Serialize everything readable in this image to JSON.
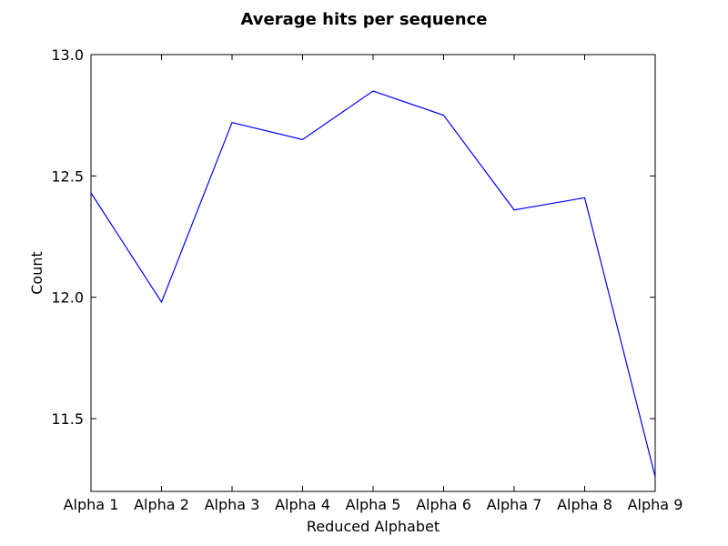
{
  "chart_data": {
    "type": "line",
    "title": "Average hits per sequence",
    "xlabel": "Reduced Alphabet",
    "ylabel": "Count",
    "categories": [
      "Alpha 1",
      "Alpha 2",
      "Alpha 3",
      "Alpha 4",
      "Alpha 5",
      "Alpha 6",
      "Alpha 7",
      "Alpha 8",
      "Alpha 9"
    ],
    "series": [
      {
        "values": [
          12.43,
          11.98,
          12.72,
          12.65,
          12.85,
          12.75,
          12.36,
          12.41,
          11.26
        ],
        "color": "#0000ff"
      }
    ],
    "ylim": [
      11.2,
      13.0
    ],
    "yticks": [
      11.5,
      12.0,
      12.5,
      13.0
    ],
    "ytick_labels": [
      "11.5",
      "12.0",
      "12.5",
      "13.0"
    ],
    "grid": false,
    "legend": "none"
  }
}
